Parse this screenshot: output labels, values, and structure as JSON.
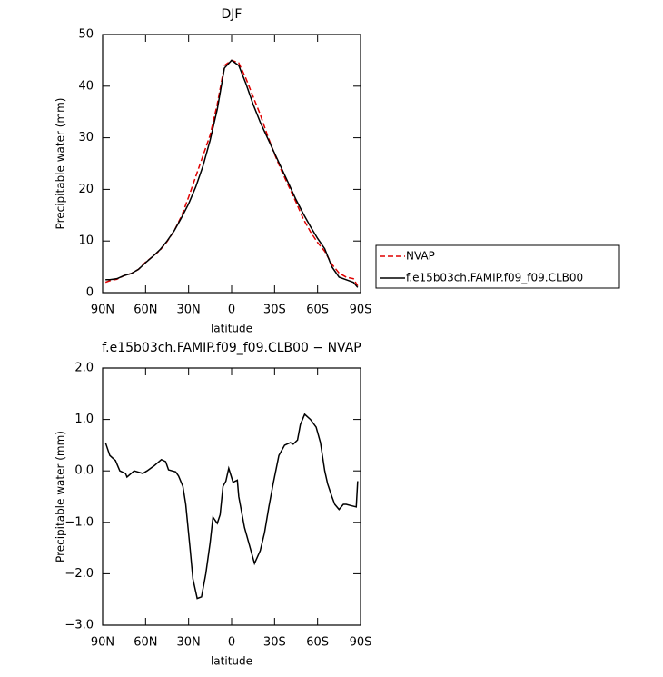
{
  "chart_data": [
    {
      "type": "line",
      "title": "DJF",
      "xlabel": "latitude",
      "ylabel": "Precipitable water (mm)",
      "x": [
        88,
        85,
        80,
        75,
        70,
        65,
        60,
        55,
        50,
        45,
        40,
        35,
        30,
        25,
        20,
        15,
        10,
        5,
        0,
        -5,
        -10,
        -15,
        -20,
        -25,
        -30,
        -35,
        -40,
        -45,
        -50,
        -55,
        -60,
        -65,
        -70,
        -75,
        -80,
        -85,
        -88
      ],
      "series": [
        {
          "name": "NVAP",
          "color": "#e00000",
          "line_style": "dashed",
          "values": [
            2.0,
            2.3,
            2.6,
            3.3,
            3.7,
            4.5,
            5.9,
            7.0,
            8.2,
            9.9,
            12.0,
            14.8,
            18.5,
            22.5,
            26.5,
            30.5,
            36.5,
            44.0,
            45.0,
            44.5,
            41.5,
            38.0,
            34.5,
            30.5,
            26.8,
            23.5,
            20.5,
            17.5,
            14.3,
            11.8,
            9.7,
            8.0,
            5.5,
            3.8,
            3.0,
            2.7,
            1.3
          ]
        },
        {
          "name": "f.e15b03ch.FAMIP.f09_f09.CLB00",
          "color": "#000000",
          "line_style": "solid",
          "values": [
            2.5,
            2.5,
            2.7,
            3.3,
            3.7,
            4.5,
            5.8,
            7.0,
            8.3,
            10.0,
            12.0,
            14.5,
            17.2,
            20.5,
            24.5,
            29.5,
            35.5,
            43.5,
            45.0,
            44.0,
            40.5,
            36.5,
            33.0,
            30.0,
            27.0,
            24.0,
            21.0,
            18.0,
            15.3,
            12.8,
            10.5,
            8.5,
            5.0,
            3.0,
            2.5,
            2.0,
            1.0
          ]
        }
      ],
      "xlim": [
        90,
        -90
      ],
      "xticks": [
        {
          "value": 90,
          "label": "90N"
        },
        {
          "value": 60,
          "label": "60N"
        },
        {
          "value": 30,
          "label": "30N"
        },
        0,
        {
          "value": -30,
          "label": "30S"
        },
        {
          "value": -60,
          "label": "60S"
        },
        {
          "value": -90,
          "label": "90S"
        }
      ],
      "ylim": [
        0,
        50
      ],
      "yticks": [
        0,
        10,
        20,
        30,
        40,
        50
      ],
      "legend": "right"
    },
    {
      "type": "line",
      "title": "f.e15b03ch.FAMIP.f09_f09.CLB00 − NVAP",
      "xlabel": "latitude",
      "ylabel": "Precipitable water (mm)",
      "x": [
        88,
        85,
        81,
        78,
        74,
        73,
        68,
        62,
        59,
        54,
        49,
        46,
        44,
        39,
        37,
        34,
        32,
        29,
        27,
        24,
        21,
        18,
        15,
        13,
        10,
        8,
        6,
        4,
        2,
        -1,
        -4,
        -5,
        -9,
        -13,
        -16,
        -20,
        -23,
        -26,
        -29,
        -33,
        -37,
        -41,
        -43,
        -46,
        -48,
        -51,
        -55,
        -59,
        -62,
        -65,
        -67,
        -70,
        -72,
        -75,
        -78,
        -80,
        -84,
        -87,
        -88
      ],
      "series": [
        {
          "name": "f.e15b03ch.FAMIP.f09_f09.CLB00 − NVAP",
          "color": "#000000",
          "line_style": "solid",
          "values": [
            0.55,
            0.3,
            0.2,
            0.0,
            -0.05,
            -0.12,
            0.0,
            -0.05,
            0.0,
            0.1,
            0.22,
            0.18,
            0.02,
            -0.02,
            -0.1,
            -0.3,
            -0.65,
            -1.5,
            -2.1,
            -2.48,
            -2.45,
            -2.0,
            -1.4,
            -0.9,
            -1.02,
            -0.85,
            -0.3,
            -0.2,
            0.05,
            -0.22,
            -0.18,
            -0.5,
            -1.1,
            -1.5,
            -1.8,
            -1.55,
            -1.2,
            -0.7,
            -0.25,
            0.3,
            0.5,
            0.55,
            0.52,
            0.6,
            0.9,
            1.1,
            1.0,
            0.85,
            0.55,
            0.0,
            -0.25,
            -0.5,
            -0.65,
            -0.75,
            -0.65,
            -0.65,
            -0.68,
            -0.7,
            -0.2
          ]
        }
      ],
      "xlim": [
        90,
        -90
      ],
      "xticks": [
        {
          "value": 90,
          "label": "90N"
        },
        {
          "value": 60,
          "label": "60N"
        },
        {
          "value": 30,
          "label": "30N"
        },
        0,
        {
          "value": -30,
          "label": "30S"
        },
        {
          "value": -60,
          "label": "60S"
        },
        {
          "value": -90,
          "label": "90S"
        }
      ],
      "ylim": [
        -3,
        2
      ],
      "yticks": [
        {
          "value": 2,
          "label": "2.0"
        },
        {
          "value": 1,
          "label": "1.0"
        },
        {
          "value": 0,
          "label": "0.0"
        },
        {
          "value": -1,
          "label": "−1.0"
        },
        {
          "value": -2,
          "label": "−2.0"
        },
        {
          "value": -3,
          "label": "−3.0"
        }
      ]
    }
  ]
}
